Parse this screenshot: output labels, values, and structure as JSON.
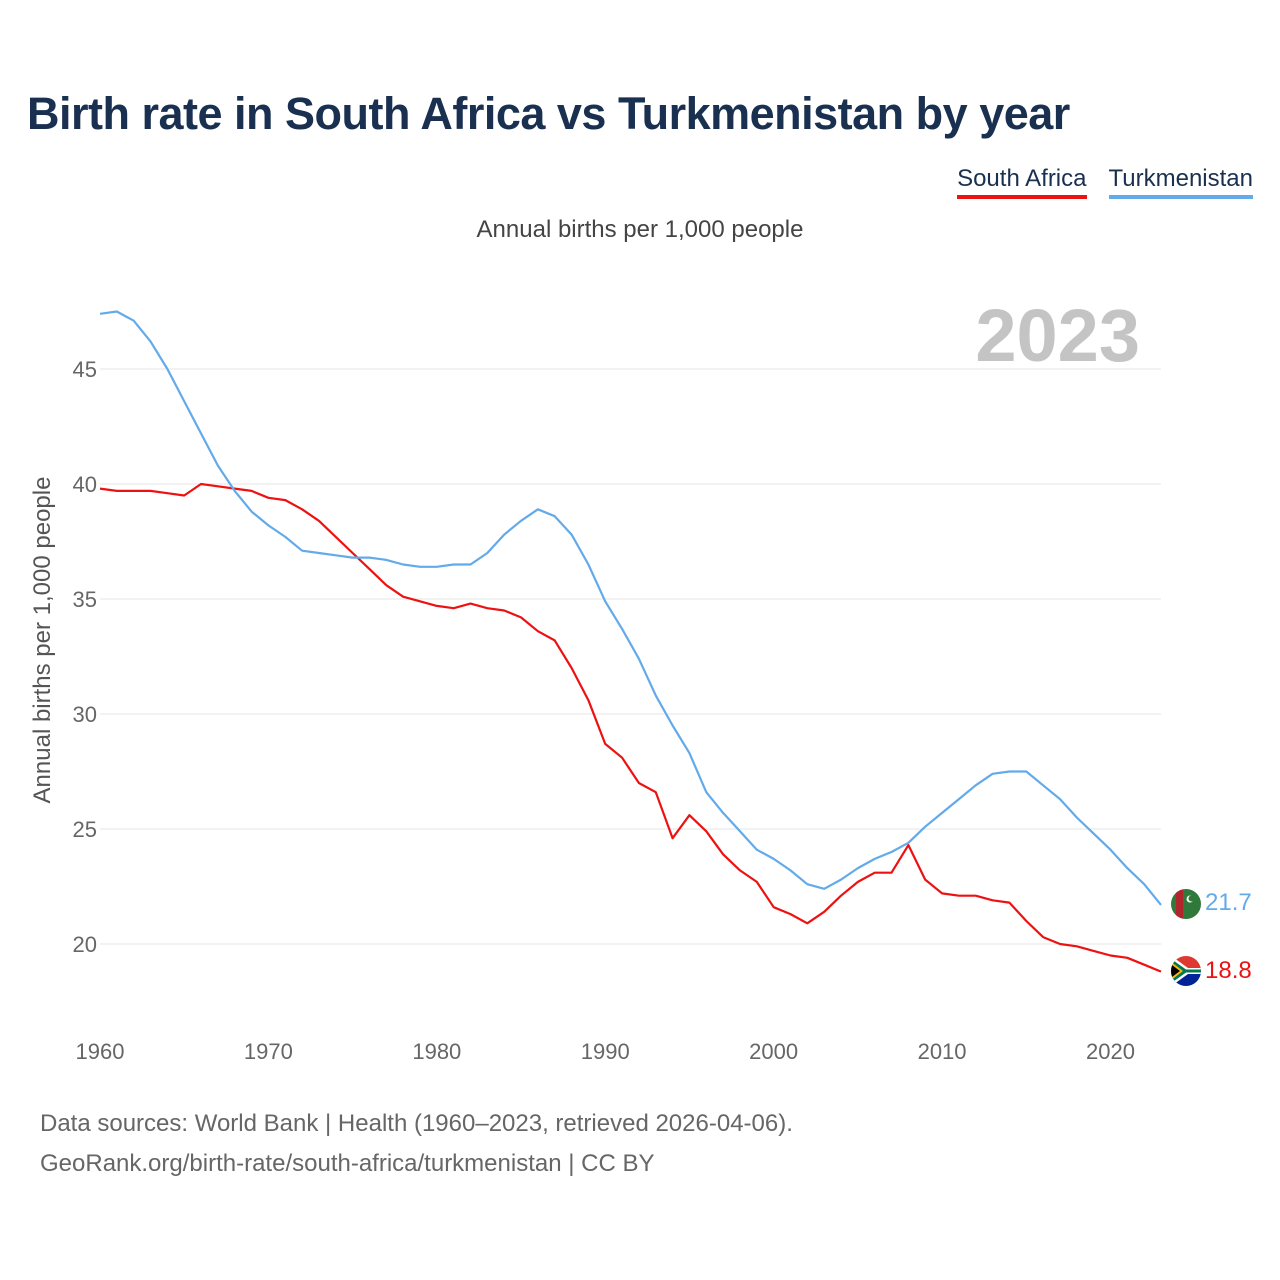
{
  "title": "Birth rate in South Africa vs Turkmenistan by year",
  "subtitle": "Annual births per 1,000 people",
  "source_line1": "Data sources: World Bank | Health (1960–2023, retrieved 2026-04-06).",
  "source_line2": "GeoRank.org/birth-rate/south-africa/turkmenistan | CC BY",
  "chart_data": {
    "type": "line",
    "title": "Birth rate in South Africa vs Turkmenistan by year",
    "xlabel": "",
    "ylabel": "Annual births per 1,000 people",
    "xlim": [
      1960,
      2023
    ],
    "ylim": [
      17,
      48
    ],
    "x_ticks": [
      1960,
      1970,
      1980,
      1990,
      2000,
      2010,
      2020
    ],
    "y_ticks": [
      20,
      25,
      30,
      35,
      40,
      45
    ],
    "grid": true,
    "legend": "top-right",
    "year_label": "2023",
    "x": [
      1960,
      1961,
      1962,
      1963,
      1964,
      1965,
      1966,
      1967,
      1968,
      1969,
      1970,
      1971,
      1972,
      1973,
      1974,
      1975,
      1976,
      1977,
      1978,
      1979,
      1980,
      1981,
      1982,
      1983,
      1984,
      1985,
      1986,
      1987,
      1988,
      1989,
      1990,
      1991,
      1992,
      1993,
      1994,
      1995,
      1996,
      1997,
      1998,
      1999,
      2000,
      2001,
      2002,
      2003,
      2004,
      2005,
      2006,
      2007,
      2008,
      2009,
      2010,
      2011,
      2012,
      2013,
      2014,
      2015,
      2016,
      2017,
      2018,
      2019,
      2020,
      2021,
      2022,
      2023
    ],
    "series": [
      {
        "name": "South Africa",
        "color": "#ee1111",
        "end_label": "18.8",
        "values": [
          39.8,
          39.7,
          39.7,
          39.7,
          39.6,
          39.5,
          40.0,
          39.9,
          39.8,
          39.7,
          39.4,
          39.3,
          38.9,
          38.4,
          37.7,
          37.0,
          36.3,
          35.6,
          35.1,
          34.9,
          34.7,
          34.6,
          34.8,
          34.6,
          34.5,
          34.2,
          33.6,
          33.2,
          32.0,
          30.6,
          28.7,
          28.1,
          27.0,
          26.6,
          24.6,
          25.6,
          24.9,
          23.9,
          23.2,
          22.7,
          21.6,
          21.3,
          20.9,
          21.4,
          22.1,
          22.7,
          23.1,
          23.1,
          24.3,
          22.8,
          22.2,
          22.1,
          22.1,
          21.9,
          21.8,
          21.0,
          20.3,
          20.0,
          19.9,
          19.7,
          19.5,
          19.4,
          19.1,
          18.8
        ]
      },
      {
        "name": "Turkmenistan",
        "color": "#62aaea",
        "end_label": "21.7",
        "values": [
          47.4,
          47.5,
          47.1,
          46.2,
          45.0,
          43.6,
          42.2,
          40.8,
          39.7,
          38.8,
          38.2,
          37.7,
          37.1,
          37.0,
          36.9,
          36.8,
          36.8,
          36.7,
          36.5,
          36.4,
          36.4,
          36.5,
          36.5,
          37.0,
          37.8,
          38.4,
          38.9,
          38.6,
          37.8,
          36.5,
          34.9,
          33.7,
          32.4,
          30.8,
          29.5,
          28.3,
          26.6,
          25.7,
          24.9,
          24.1,
          23.7,
          23.2,
          22.6,
          22.4,
          22.8,
          23.3,
          23.7,
          24.0,
          24.4,
          25.1,
          25.7,
          26.3,
          26.9,
          27.4,
          27.5,
          27.5,
          26.9,
          26.3,
          25.5,
          24.8,
          24.1,
          23.3,
          22.6,
          21.7
        ]
      }
    ]
  }
}
